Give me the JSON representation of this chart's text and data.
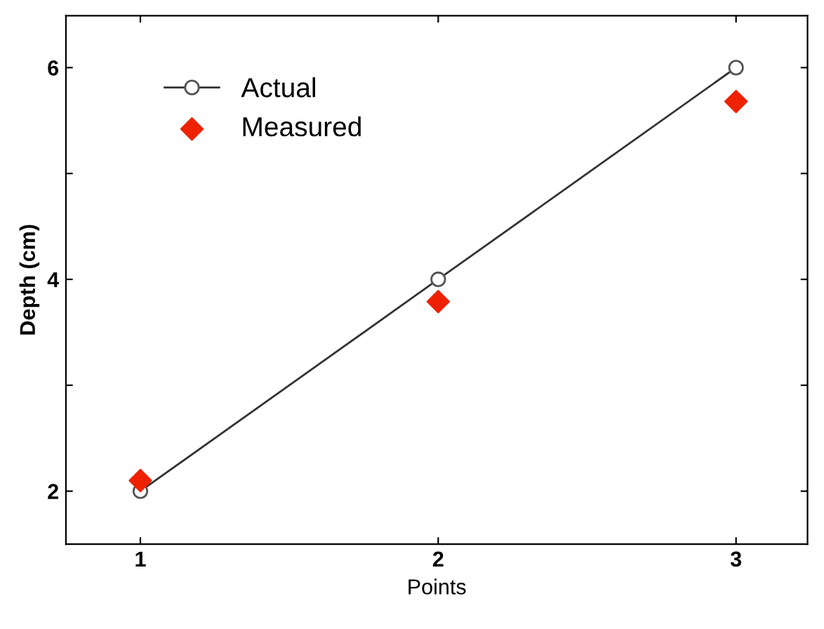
{
  "chart_data": {
    "type": "line",
    "xlabel": "Points",
    "ylabel": "Depth (cm)",
    "x": [
      1,
      2,
      3
    ],
    "series": [
      {
        "name": "Actual",
        "color": "#333333",
        "values": [
          2,
          4,
          6
        ],
        "marker": "circle",
        "line_style": "solid"
      },
      {
        "name": "Measured",
        "type": "scatter",
        "color": "#ee2200",
        "values": [
          2.1,
          3.79,
          5.68
        ],
        "marker": "diamond"
      }
    ],
    "xlim": [
      0.75,
      3.24
    ],
    "xticks": [
      1,
      2,
      3
    ],
    "ylim": [
      1.5,
      6.49
    ],
    "yticks": [
      2,
      {
        "value": 3,
        "label": null
      },
      4,
      {
        "value": 5,
        "label": null
      },
      6
    ],
    "grid": false,
    "legend": "top left"
  }
}
